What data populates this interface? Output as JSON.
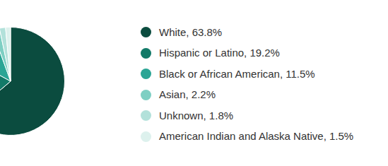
{
  "chart_data": {
    "type": "pie",
    "categories": [
      "White, 63.8%",
      "Hispanic or Latino, 19.2%",
      "Black or African American, 11.5%",
      "Asian, 2.2%",
      "Unknown, 1.8%",
      "American Indian and Alaska Native, 1.5%"
    ],
    "values": [
      63.8,
      19.2,
      11.5,
      2.2,
      1.8,
      1.5
    ],
    "colors": [
      "#0b4c3f",
      "#127a68",
      "#2ba595",
      "#7ecfc3",
      "#b2e1da",
      "#ddf1ed"
    ],
    "legend": "right"
  }
}
